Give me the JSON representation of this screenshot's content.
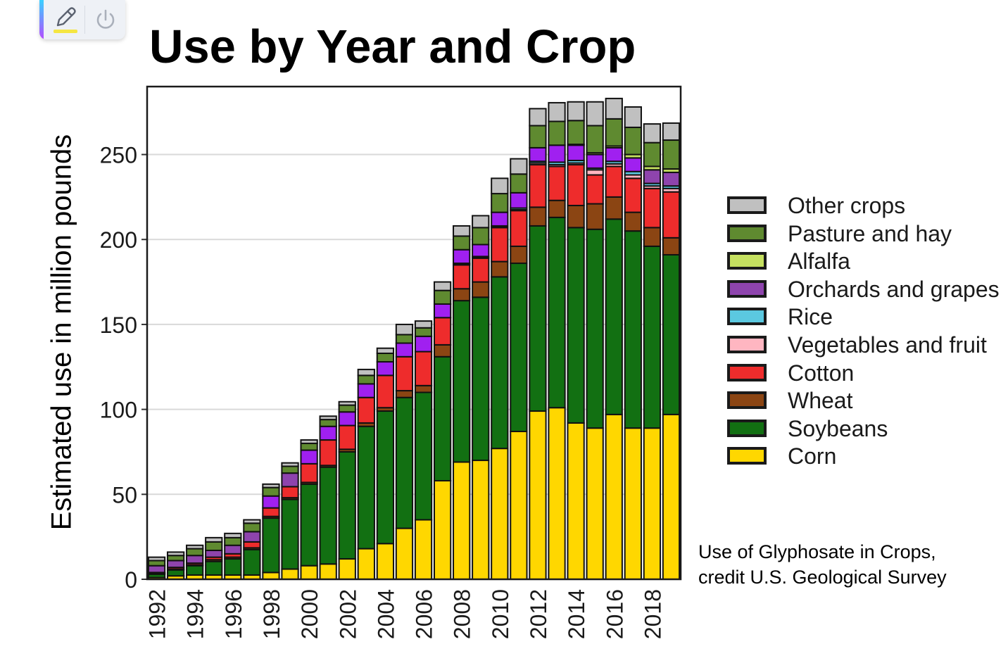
{
  "toolbar": {
    "buttons": [
      {
        "name": "pen",
        "icon": "pen-icon",
        "accent": "#f5e642"
      },
      {
        "name": "power",
        "icon": "power-icon"
      }
    ]
  },
  "caption": {
    "line1": "Use of Glyphosate in Crops,",
    "line2": "credit U.S. Geological Survey"
  },
  "chart_data": {
    "type": "bar",
    "stacked": true,
    "title": "Use by Year and Crop",
    "xlabel": "",
    "ylabel": "Estimated use in million pounds",
    "ylim": [
      0,
      290
    ],
    "yticks": [
      0,
      50,
      100,
      150,
      200,
      250
    ],
    "grid": "horizontal",
    "legend_position": "right",
    "categories": [
      "1992",
      "1993",
      "1994",
      "1995",
      "1996",
      "1997",
      "1998",
      "1999",
      "2000",
      "2001",
      "2002",
      "2003",
      "2004",
      "2005",
      "2006",
      "2007",
      "2008",
      "2009",
      "2010",
      "2011",
      "2012",
      "2013",
      "2014",
      "2015",
      "2016",
      "2017",
      "2018",
      "2019"
    ],
    "xtick_labels": [
      "1992",
      "1994",
      "1996",
      "1998",
      "2000",
      "2002",
      "2004",
      "2006",
      "2008",
      "2010",
      "2012",
      "2014",
      "2016",
      "2018"
    ],
    "series": [
      {
        "name": "Corn",
        "color": "#FFD700",
        "values": [
          1,
          2,
          2.5,
          2.5,
          2.5,
          2.5,
          4,
          6,
          8,
          9,
          12,
          18,
          21,
          30,
          35,
          58,
          69,
          70,
          77,
          87,
          99,
          101,
          92,
          89,
          97,
          89,
          89,
          97
        ]
      },
      {
        "name": "Soybeans",
        "color": "#127012",
        "values": [
          2,
          3.5,
          5.5,
          8,
          9.5,
          15,
          32,
          41,
          48,
          57,
          63,
          72,
          78,
          77,
          75,
          73,
          95,
          96,
          101,
          99,
          109,
          112,
          115,
          117,
          115,
          116,
          107,
          94
        ]
      },
      {
        "name": "Wheat",
        "color": "#8B4513",
        "values": [
          0.5,
          0.5,
          0.5,
          1,
          1,
          1,
          1,
          1,
          1,
          1,
          1.5,
          2,
          2,
          4,
          4,
          7,
          7,
          9,
          9,
          10,
          11,
          10,
          13,
          15,
          13,
          11,
          11,
          10
        ]
      },
      {
        "name": "Cotton",
        "color": "#EE2C2C",
        "values": [
          0.5,
          1,
          1,
          1.5,
          2,
          3.5,
          5,
          6.5,
          11,
          15,
          14,
          15,
          19,
          20,
          20,
          16,
          14,
          14,
          20,
          21,
          25,
          20,
          24,
          17,
          18,
          20,
          23,
          27
        ]
      },
      {
        "name": "Vegetables and fruit",
        "color": "#FFB6C1",
        "values": [
          0,
          0,
          0,
          0,
          0,
          0,
          0,
          0,
          0,
          0,
          0,
          0,
          0,
          0,
          0,
          0,
          0.5,
          0.5,
          0.5,
          0.5,
          1,
          1,
          1,
          3,
          1.5,
          2,
          1.5,
          2
        ]
      },
      {
        "name": "Rice",
        "color": "#5BC8E0",
        "values": [
          0,
          0,
          0,
          0,
          0,
          0,
          0,
          0,
          0,
          0,
          0,
          0,
          0,
          0,
          0,
          0,
          0.5,
          0.5,
          0.5,
          1,
          1,
          1.5,
          1.5,
          1,
          1.5,
          2,
          1.5,
          1.5
        ]
      },
      {
        "name": "Orchards and grapes",
        "color": "#8E44AD",
        "values": [
          4,
          4,
          4.5,
          4,
          5,
          6,
          7,
          8,
          8,
          8,
          8,
          8,
          8,
          8,
          9,
          8,
          8,
          7,
          8,
          9,
          8,
          10,
          9,
          8,
          8,
          8,
          8,
          8
        ],
        "highlight_color": "#A020F0"
      },
      {
        "name": "Alfalfa",
        "color": "#C5E060",
        "values": [
          0,
          0,
          0,
          0,
          0,
          0,
          0,
          0,
          0,
          0,
          0,
          0,
          0,
          0,
          0,
          0,
          0,
          0,
          0,
          0,
          0,
          0,
          0.5,
          1,
          1,
          2,
          2,
          2
        ]
      },
      {
        "name": "Pasture and hay",
        "color": "#5F8A30",
        "values": [
          3,
          3,
          4,
          5,
          4.5,
          5,
          5,
          4,
          4,
          4,
          4,
          5,
          5,
          5,
          5,
          8,
          8,
          10,
          11,
          11,
          13,
          14,
          14,
          16,
          16,
          16,
          14,
          17
        ]
      },
      {
        "name": "Other crops",
        "color": "#C0C0C0",
        "values": [
          2,
          2,
          2,
          2.5,
          2.5,
          2,
          2,
          2,
          2,
          2,
          2,
          3.5,
          3,
          6,
          4,
          5,
          6,
          7,
          9,
          9,
          10,
          11,
          11,
          14,
          12,
          12,
          11,
          10
        ]
      }
    ]
  }
}
